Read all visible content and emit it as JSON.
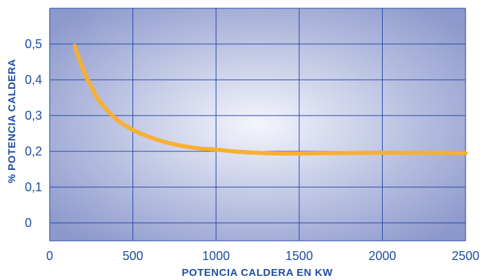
{
  "colors": {
    "plot_center": "#f4f5fc",
    "plot_edge": "#8c99cc",
    "grid": "#2247a8",
    "curve": "#f7b032",
    "text": "#1f4ea3"
  },
  "chart_data": {
    "type": "line",
    "xlabel": "POTENCIA CALDERA EN KW",
    "ylabel": "% POTENCIA CALDERA",
    "xlim": [
      0,
      2500
    ],
    "ylim": [
      -0.05,
      0.6
    ],
    "grid": true,
    "x_ticks": [
      0,
      500,
      1000,
      1500,
      2000,
      2500
    ],
    "x_tick_labels": [
      "0",
      "500",
      "1000",
      "1500",
      "2000",
      "2500"
    ],
    "y_ticks": [
      0,
      0.1,
      0.2,
      0.3,
      0.4,
      0.5
    ],
    "y_tick_labels": [
      "0",
      "0,1",
      "0,2",
      "0,3",
      "0,4",
      "0,5"
    ],
    "series": [
      {
        "x": [
          150,
          200,
          250,
          300,
          400,
          500,
          600,
          700,
          800,
          900,
          1000,
          1100,
          1200,
          1300,
          1400,
          1500,
          1700,
          1900,
          2100,
          2300,
          2500
        ],
        "y": [
          0.495,
          0.43,
          0.38,
          0.34,
          0.29,
          0.26,
          0.24,
          0.225,
          0.215,
          0.208,
          0.205,
          0.2,
          0.197,
          0.195,
          0.194,
          0.194,
          0.195,
          0.196,
          0.196,
          0.196,
          0.195
        ]
      }
    ]
  }
}
